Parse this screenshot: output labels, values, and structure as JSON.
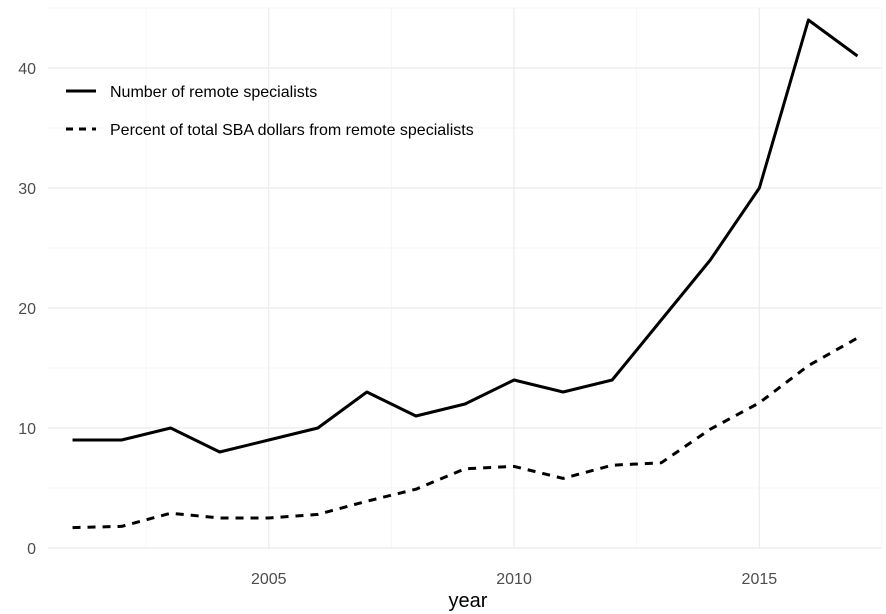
{
  "chart_data": {
    "type": "line",
    "title": "",
    "xlabel": "year",
    "ylabel": "",
    "xlim": [
      2000.5,
      2017.5
    ],
    "ylim": [
      0,
      45
    ],
    "x_ticks": [
      2005,
      2010,
      2015
    ],
    "y_ticks": [
      0,
      10,
      20,
      30,
      40
    ],
    "grid": true,
    "legend_position": "top-left",
    "x": [
      2001,
      2002,
      2003,
      2004,
      2005,
      2006,
      2007,
      2008,
      2009,
      2010,
      2011,
      2012,
      2013,
      2014,
      2015,
      2016,
      2017
    ],
    "series": [
      {
        "name": "Number of remote specialists",
        "line_style": "solid",
        "color": "#000000",
        "values": [
          9,
          9,
          10,
          8,
          9,
          10,
          13,
          11,
          12,
          14,
          13,
          14,
          19,
          24,
          30,
          44,
          41
        ]
      },
      {
        "name": "Percent of total SBA dollars from remote specialists",
        "line_style": "dashed",
        "color": "#000000",
        "values": [
          1.7,
          1.8,
          2.9,
          2.5,
          2.5,
          2.8,
          3.9,
          4.9,
          6.6,
          6.8,
          5.8,
          6.9,
          7.1,
          9.9,
          12.1,
          15.2,
          17.5
        ]
      }
    ]
  }
}
